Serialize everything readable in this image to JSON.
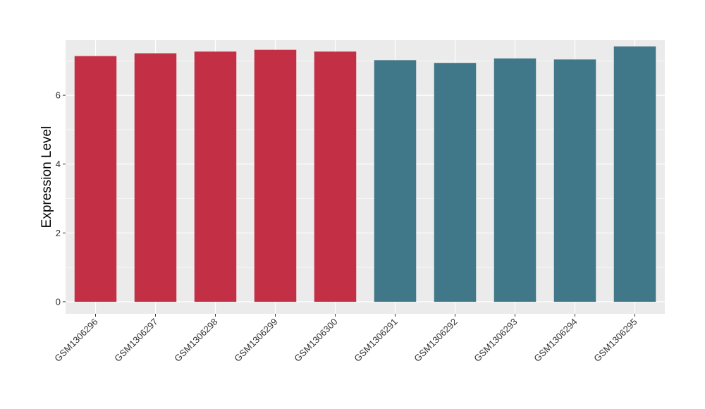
{
  "chart_data": {
    "type": "bar",
    "title": "",
    "xlabel": "",
    "ylabel": "Expression Level",
    "categories": [
      "GSM1306296",
      "GSM1306297",
      "GSM1306298",
      "GSM1306299",
      "GSM1306300",
      "GSM1306291",
      "GSM1306292",
      "GSM1306293",
      "GSM1306294",
      "GSM1306295"
    ],
    "values": [
      7.14,
      7.22,
      7.27,
      7.32,
      7.27,
      7.02,
      6.94,
      7.07,
      7.04,
      7.42
    ],
    "bar_colors": [
      "#C33046",
      "#C33046",
      "#C33046",
      "#C33046",
      "#C33046",
      "#417889",
      "#417889",
      "#417889",
      "#417889",
      "#417889"
    ],
    "ylim": [
      -0.35,
      7.6
    ],
    "yticks": [
      0,
      2,
      4,
      6
    ],
    "grid": true,
    "legend": "none",
    "panel_background": "#EBEBEB",
    "grid_color": "#FFFFFF"
  }
}
